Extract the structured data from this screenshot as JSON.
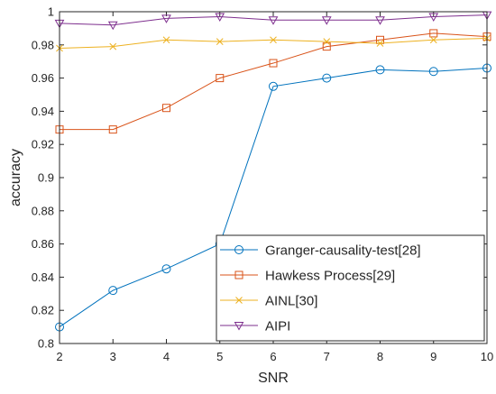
{
  "chart_data": {
    "type": "line",
    "xlabel": "SNR",
    "ylabel": "accuracy",
    "xlim": [
      2,
      10
    ],
    "ylim": [
      0.8,
      1.0
    ],
    "xticks": [
      2,
      3,
      4,
      5,
      6,
      7,
      8,
      9,
      10
    ],
    "yticks": [
      0.8,
      0.82,
      0.84,
      0.86,
      0.88,
      0.9,
      0.92,
      0.94,
      0.96,
      0.98,
      1
    ],
    "ytick_labels": [
      "0.8",
      "0.82",
      "0.84",
      "0.86",
      "0.88",
      "0.9",
      "0.92",
      "0.94",
      "0.96",
      "0.98",
      "1"
    ],
    "grid": false,
    "legend_position": "bottom-right",
    "x": [
      2,
      3,
      4,
      5,
      6,
      7,
      8,
      9,
      10
    ],
    "series": [
      {
        "name": "Granger-causality-test[28]",
        "color": "#0072BD",
        "marker": "circle",
        "values": [
          0.81,
          0.832,
          0.845,
          0.86,
          0.955,
          0.96,
          0.965,
          0.964,
          0.966
        ]
      },
      {
        "name": "Hawkess Process[29]",
        "color": "#D95319",
        "marker": "square",
        "values": [
          0.929,
          0.929,
          0.942,
          0.96,
          0.969,
          0.979,
          0.983,
          0.987,
          0.985
        ]
      },
      {
        "name": "AINL[30]",
        "color": "#EDB120",
        "marker": "x",
        "values": [
          0.978,
          0.979,
          0.983,
          0.982,
          0.983,
          0.982,
          0.981,
          0.983,
          0.984
        ]
      },
      {
        "name": "AIPI",
        "color": "#7E2F8E",
        "marker": "triangle-down",
        "values": [
          0.993,
          0.992,
          0.996,
          0.997,
          0.995,
          0.995,
          0.995,
          0.997,
          0.998
        ]
      }
    ]
  }
}
